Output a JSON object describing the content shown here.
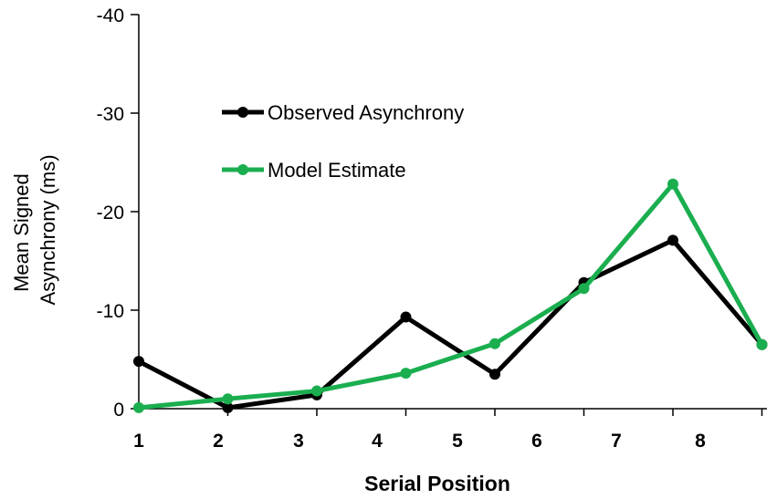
{
  "chart_data": {
    "type": "line",
    "xlabel": "Serial Position",
    "ylabel_lines": [
      "Mean Signed",
      "Asynchrony (ms)"
    ],
    "x_tick_labels": [
      "1",
      "2",
      "3",
      "4",
      "5",
      "6",
      "7",
      "8"
    ],
    "y_ticks": [
      {
        "value": 0,
        "label": "0"
      },
      {
        "value": -10,
        "label": "-10"
      },
      {
        "value": -20,
        "label": "-20"
      },
      {
        "value": -30,
        "label": "-30"
      },
      {
        "value": -40,
        "label": "-40"
      }
    ],
    "ylim": [
      0,
      -40
    ],
    "y_inverted": true,
    "series": [
      {
        "name": "Observed Asynchrony",
        "color": "#000000",
        "x": [
          1,
          2,
          3,
          4,
          5,
          6,
          7,
          8
        ],
        "values": [
          -4.8,
          -0.1,
          -1.4,
          -9.3,
          -3.5,
          -12.8,
          -17.1,
          -6.5
        ]
      },
      {
        "name": "Model Estimate",
        "color": "#1aae4f",
        "x": [
          1,
          2,
          3,
          4,
          5,
          6,
          7,
          8
        ],
        "values": [
          -0.1,
          -1.0,
          -1.8,
          -3.6,
          -6.6,
          -12.2,
          -22.8,
          -6.5
        ]
      }
    ],
    "legend_position": "top-left"
  }
}
